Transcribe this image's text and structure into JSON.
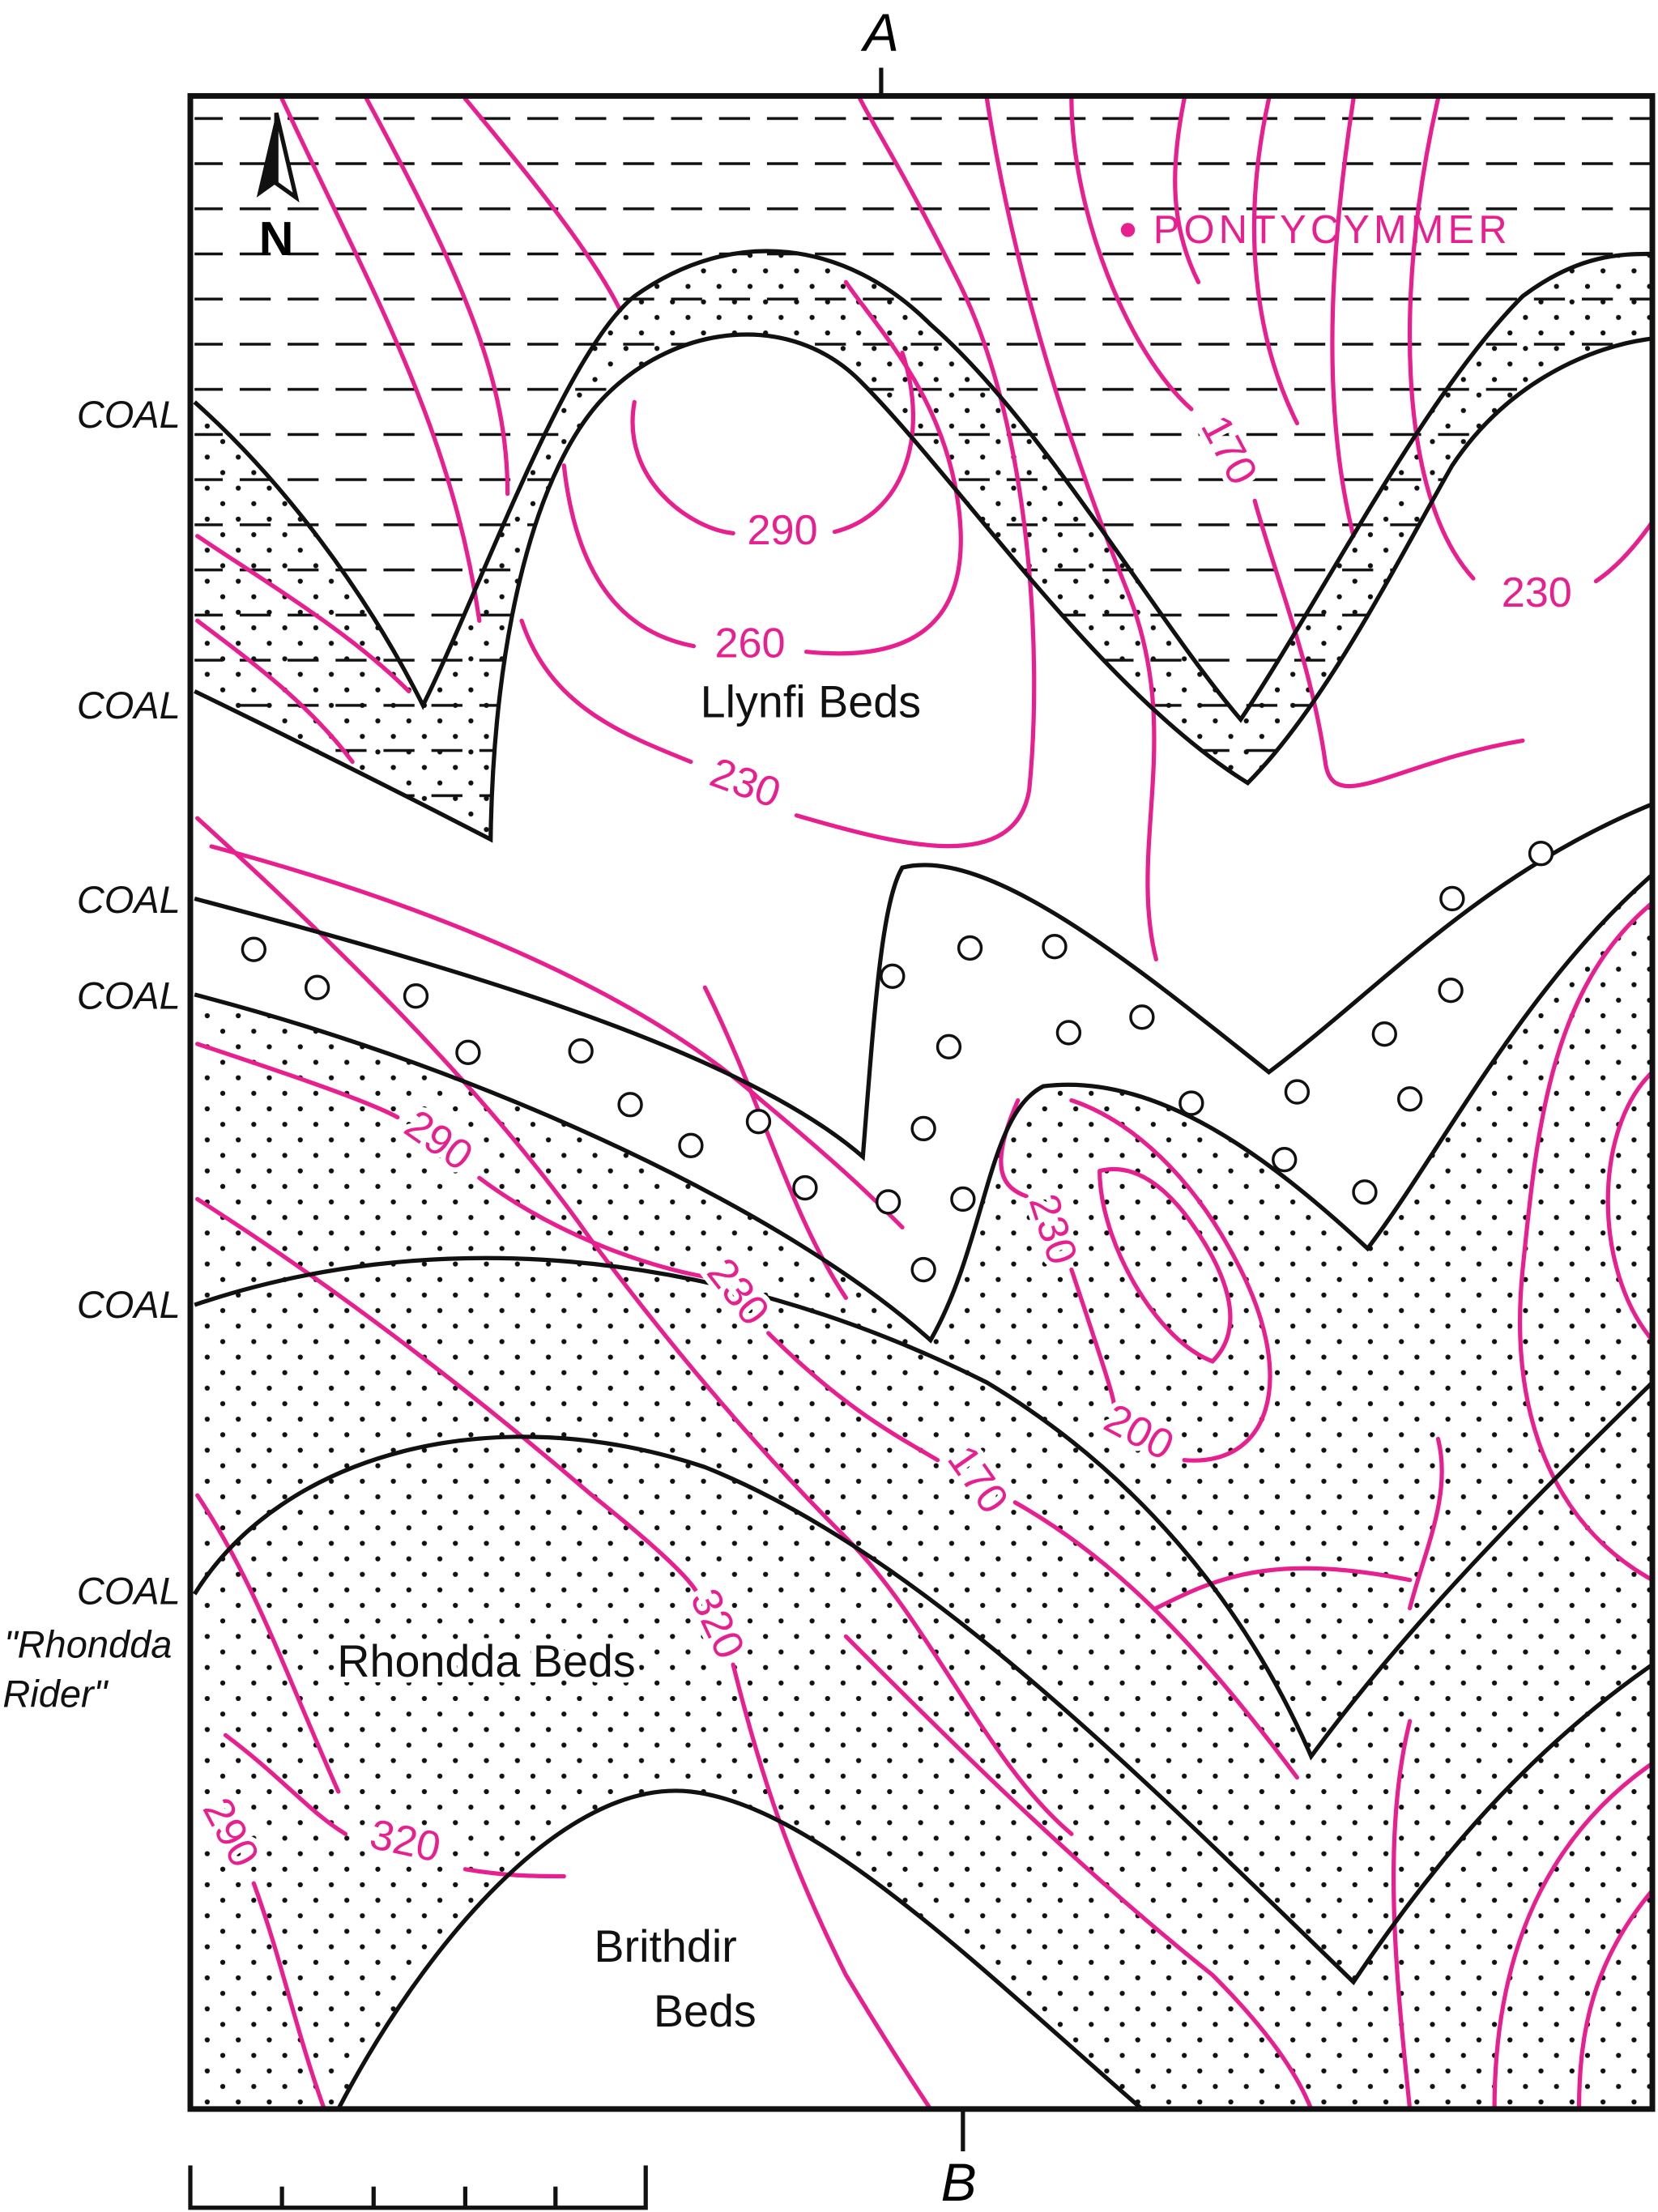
{
  "section": {
    "start": "A",
    "end": "B"
  },
  "north": "N",
  "place": "PONTYCYMMER",
  "units": {
    "llynfi": "Llynfi Beds",
    "rhondda": "Rhondda Beds",
    "brithdir": [
      "Brithdir",
      "Beds"
    ]
  },
  "coal_labels": [
    "COAL",
    "COAL",
    "COAL",
    "COAL",
    "COAL",
    "COAL"
  ],
  "rhondda_rider": [
    "\"Rhondda",
    "Rider\""
  ],
  "contour_labels": [
    "290",
    "260",
    "230",
    "170",
    "230",
    "290",
    "230",
    "230",
    "200",
    "170",
    "320",
    "320",
    "290"
  ]
}
